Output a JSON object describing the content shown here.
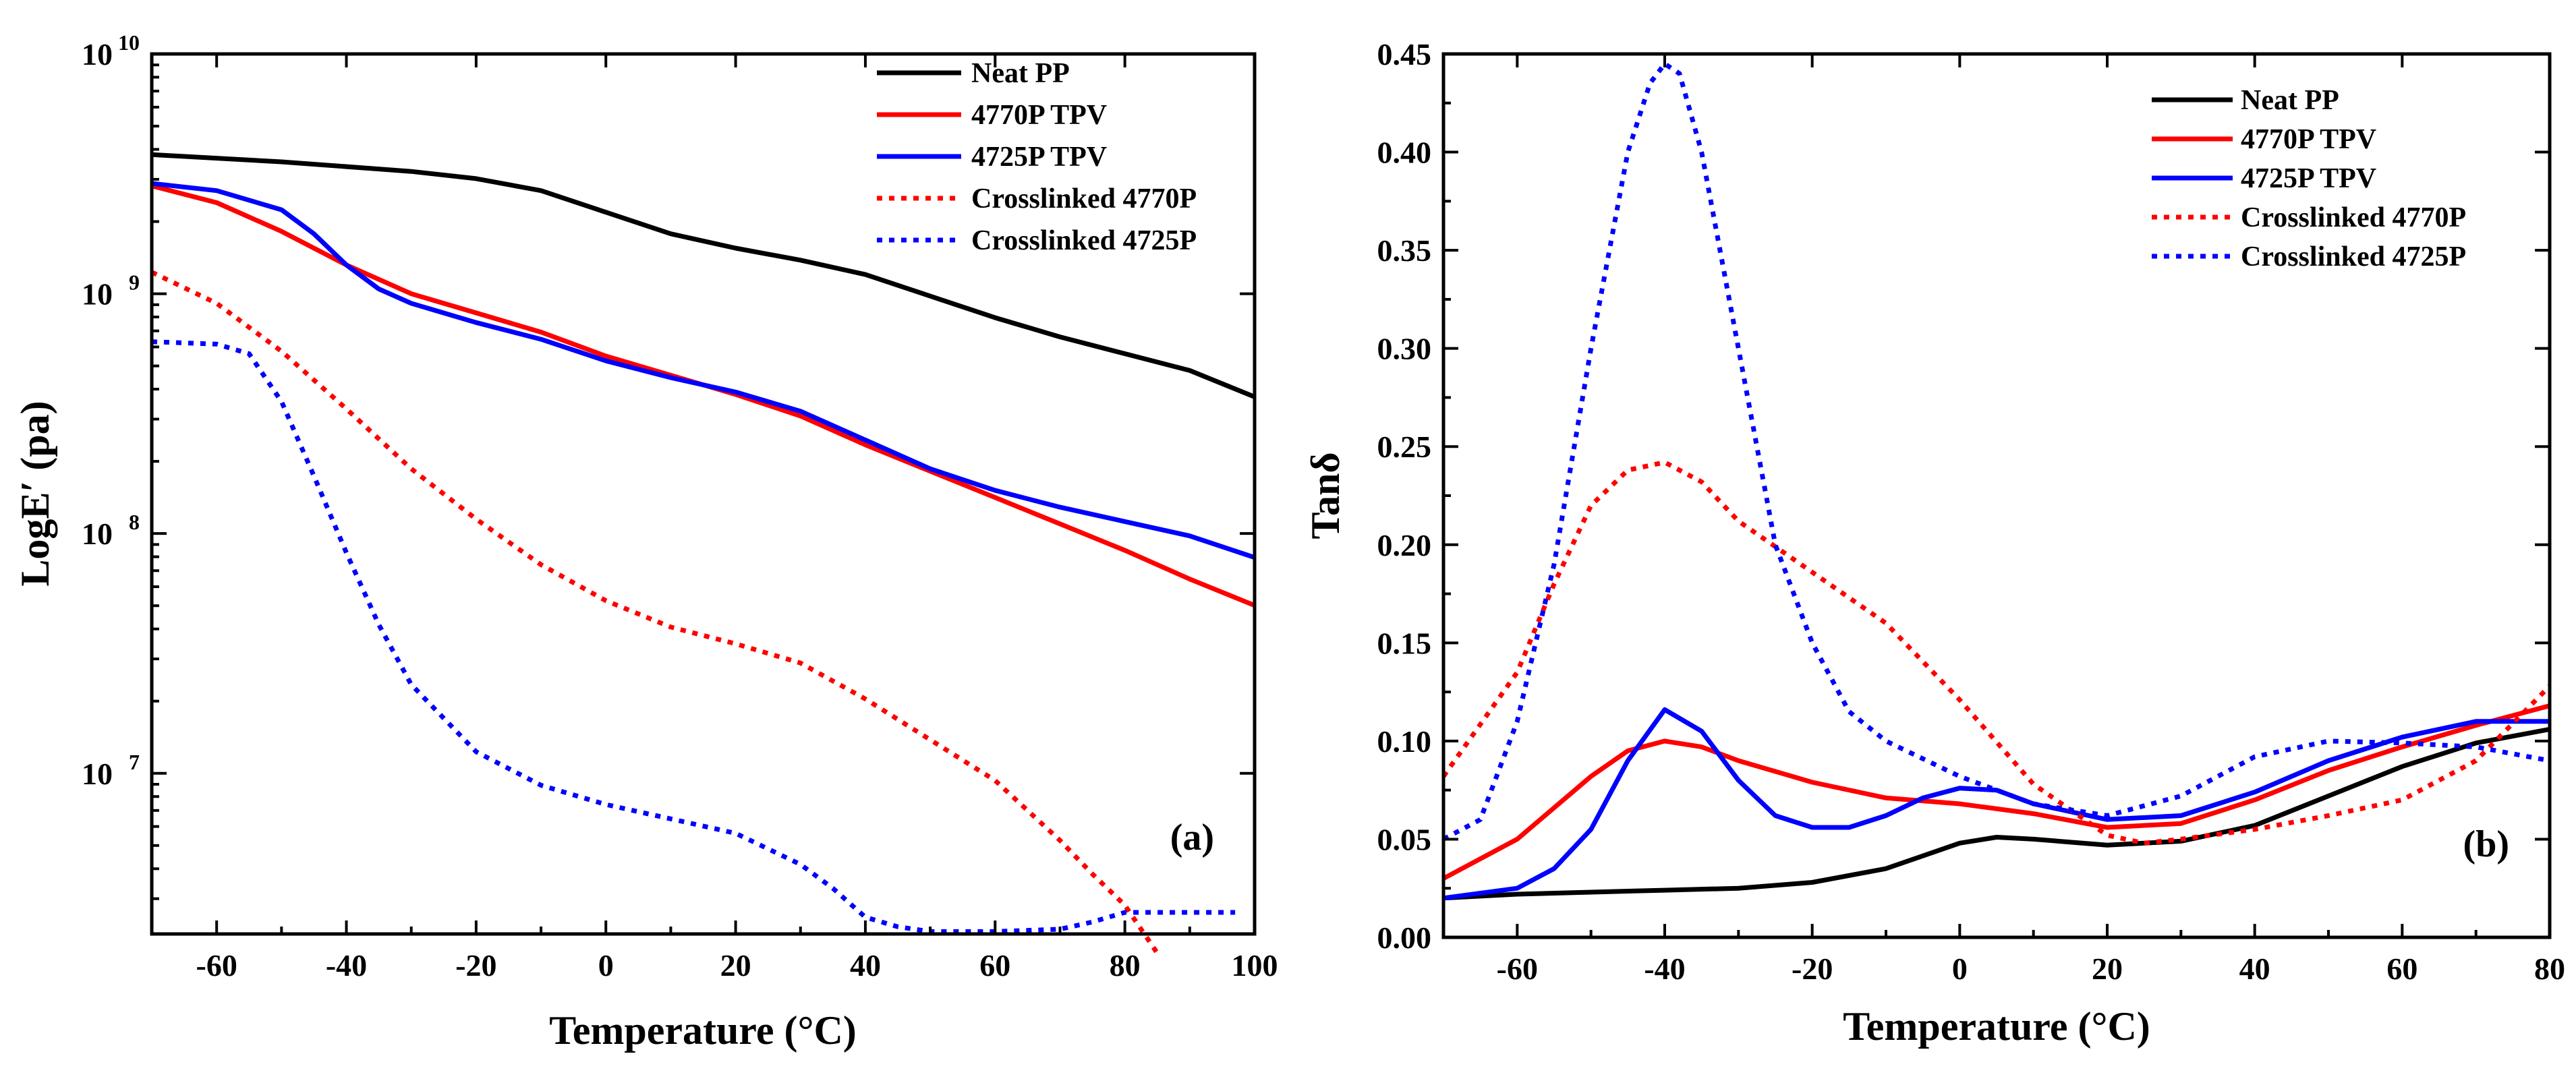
{
  "chart_data": [
    {
      "type": "line",
      "panel_label": "(a)",
      "xlabel": "Temperature (°C)",
      "ylabel": "LogE′ (pa)",
      "xlim": [
        -70,
        100
      ],
      "ylim_log10": [
        6.33,
        10
      ],
      "yscale": "log",
      "xticks": [
        -60,
        -40,
        -20,
        0,
        20,
        40,
        60,
        80,
        100
      ],
      "yticks": [
        {
          "base": "10",
          "exp": "10",
          "value": 10
        },
        {
          "base": "10",
          "exp": "9",
          "value": 9
        },
        {
          "base": "10",
          "exp": "8",
          "value": 8
        },
        {
          "base": "10",
          "exp": "7",
          "value": 7
        }
      ],
      "legend_position": "top-right",
      "series": [
        {
          "name": "Neat PP",
          "color": "#000000",
          "style": "solid",
          "x": [
            -70,
            -50,
            -30,
            -20,
            -10,
            0,
            10,
            20,
            30,
            40,
            50,
            60,
            70,
            80,
            90,
            100
          ],
          "y_log10": [
            9.58,
            9.55,
            9.51,
            9.48,
            9.43,
            9.34,
            9.25,
            9.19,
            9.14,
            9.08,
            8.99,
            8.9,
            8.82,
            8.75,
            8.68,
            8.57
          ]
        },
        {
          "name": "4770P TPV",
          "color": "#ff0000",
          "style": "solid",
          "x": [
            -70,
            -60,
            -50,
            -40,
            -30,
            -20,
            -10,
            0,
            10,
            20,
            30,
            40,
            50,
            60,
            70,
            80,
            90,
            100
          ],
          "y_log10": [
            9.45,
            9.38,
            9.26,
            9.12,
            9.0,
            8.92,
            8.84,
            8.74,
            8.66,
            8.58,
            8.49,
            8.37,
            8.26,
            8.15,
            8.04,
            7.93,
            7.81,
            7.7
          ]
        },
        {
          "name": "4725P TPV",
          "color": "#0000ff",
          "style": "solid",
          "x": [
            -70,
            -60,
            -50,
            -45,
            -40,
            -35,
            -30,
            -20,
            -10,
            0,
            10,
            20,
            30,
            40,
            50,
            60,
            70,
            80,
            90,
            100
          ],
          "y_log10": [
            9.46,
            9.43,
            9.35,
            9.25,
            9.12,
            9.02,
            8.96,
            8.88,
            8.81,
            8.72,
            8.65,
            8.59,
            8.51,
            8.39,
            8.27,
            8.18,
            8.11,
            8.05,
            7.99,
            7.9
          ]
        },
        {
          "name": "Crosslinked 4770P",
          "color": "#ff0000",
          "style": "dotted",
          "x": [
            -70,
            -60,
            -50,
            -40,
            -30,
            -20,
            -10,
            0,
            10,
            20,
            30,
            40,
            50,
            60,
            70,
            75,
            80,
            83,
            85
          ],
          "y_log10": [
            9.09,
            8.96,
            8.76,
            8.52,
            8.27,
            8.06,
            7.87,
            7.72,
            7.61,
            7.54,
            7.46,
            7.31,
            7.14,
            6.97,
            6.72,
            6.58,
            6.45,
            6.33,
            6.25
          ]
        },
        {
          "name": "Crosslinked 4725P",
          "color": "#0000ff",
          "style": "dotted",
          "x": [
            -70,
            -60,
            -55,
            -50,
            -45,
            -40,
            -35,
            -30,
            -20,
            -10,
            0,
            10,
            20,
            30,
            35,
            40,
            45,
            50,
            60,
            70,
            75,
            80,
            90,
            97
          ],
          "y_log10": [
            8.8,
            8.79,
            8.75,
            8.55,
            8.24,
            7.92,
            7.62,
            7.37,
            7.09,
            6.95,
            6.87,
            6.81,
            6.75,
            6.62,
            6.52,
            6.4,
            6.36,
            6.34,
            6.34,
            6.35,
            6.38,
            6.42,
            6.42,
            6.42
          ]
        }
      ]
    },
    {
      "type": "line",
      "panel_label": "(b)",
      "xlabel": "Temperature (°C)",
      "ylabel": "Tanδ",
      "xlim": [
        -70,
        80
      ],
      "ylim": [
        0,
        0.45
      ],
      "xticks": [
        -60,
        -40,
        -20,
        0,
        20,
        40,
        60,
        80
      ],
      "yticks": [
        "0.00",
        "0.05",
        "0.10",
        "0.15",
        "0.20",
        "0.25",
        "0.30",
        "0.35",
        "0.40",
        "0.45"
      ],
      "legend_position": "top-right",
      "series": [
        {
          "name": "Neat PP",
          "color": "#000000",
          "style": "solid",
          "x": [
            -70,
            -60,
            -50,
            -40,
            -30,
            -20,
            -10,
            0,
            5,
            10,
            20,
            30,
            40,
            50,
            60,
            70,
            80
          ],
          "y": [
            0.02,
            0.022,
            0.023,
            0.024,
            0.025,
            0.028,
            0.035,
            0.048,
            0.051,
            0.05,
            0.047,
            0.049,
            0.057,
            0.072,
            0.087,
            0.099,
            0.106
          ]
        },
        {
          "name": "4770P TPV",
          "color": "#ff0000",
          "style": "solid",
          "x": [
            -70,
            -60,
            -50,
            -45,
            -40,
            -35,
            -30,
            -20,
            -10,
            0,
            10,
            20,
            30,
            40,
            50,
            60,
            70,
            80
          ],
          "y": [
            0.03,
            0.05,
            0.082,
            0.095,
            0.1,
            0.097,
            0.09,
            0.079,
            0.071,
            0.068,
            0.063,
            0.056,
            0.058,
            0.07,
            0.085,
            0.097,
            0.108,
            0.118
          ]
        },
        {
          "name": "4725P TPV",
          "color": "#0000ff",
          "style": "solid",
          "x": [
            -70,
            -60,
            -55,
            -50,
            -45,
            -40,
            -35,
            -30,
            -25,
            -20,
            -15,
            -10,
            -5,
            0,
            5,
            10,
            20,
            30,
            40,
            50,
            60,
            70,
            80
          ],
          "y": [
            0.02,
            0.025,
            0.035,
            0.055,
            0.09,
            0.116,
            0.105,
            0.08,
            0.062,
            0.056,
            0.056,
            0.062,
            0.071,
            0.076,
            0.075,
            0.068,
            0.06,
            0.062,
            0.074,
            0.09,
            0.102,
            0.11,
            0.11
          ]
        },
        {
          "name": "Crosslinked 4770P",
          "color": "#ff0000",
          "style": "dotted",
          "x": [
            -70,
            -60,
            -55,
            -50,
            -45,
            -40,
            -35,
            -30,
            -20,
            -10,
            0,
            10,
            20,
            25,
            30,
            40,
            50,
            60,
            70,
            80
          ],
          "y": [
            0.082,
            0.135,
            0.18,
            0.22,
            0.238,
            0.242,
            0.232,
            0.212,
            0.186,
            0.16,
            0.121,
            0.078,
            0.052,
            0.048,
            0.05,
            0.055,
            0.062,
            0.07,
            0.09,
            0.128
          ]
        },
        {
          "name": "Crosslinked 4725P",
          "color": "#0000ff",
          "style": "dotted",
          "x": [
            -70,
            -65,
            -60,
            -55,
            -50,
            -45,
            -42,
            -40,
            -38,
            -35,
            -30,
            -25,
            -20,
            -15,
            -10,
            0,
            10,
            20,
            30,
            40,
            50,
            60,
            70,
            80
          ],
          "y": [
            0.05,
            0.06,
            0.11,
            0.19,
            0.3,
            0.4,
            0.435,
            0.445,
            0.44,
            0.4,
            0.3,
            0.2,
            0.15,
            0.115,
            0.1,
            0.082,
            0.068,
            0.062,
            0.072,
            0.092,
            0.1,
            0.099,
            0.097,
            0.09
          ]
        }
      ]
    }
  ]
}
